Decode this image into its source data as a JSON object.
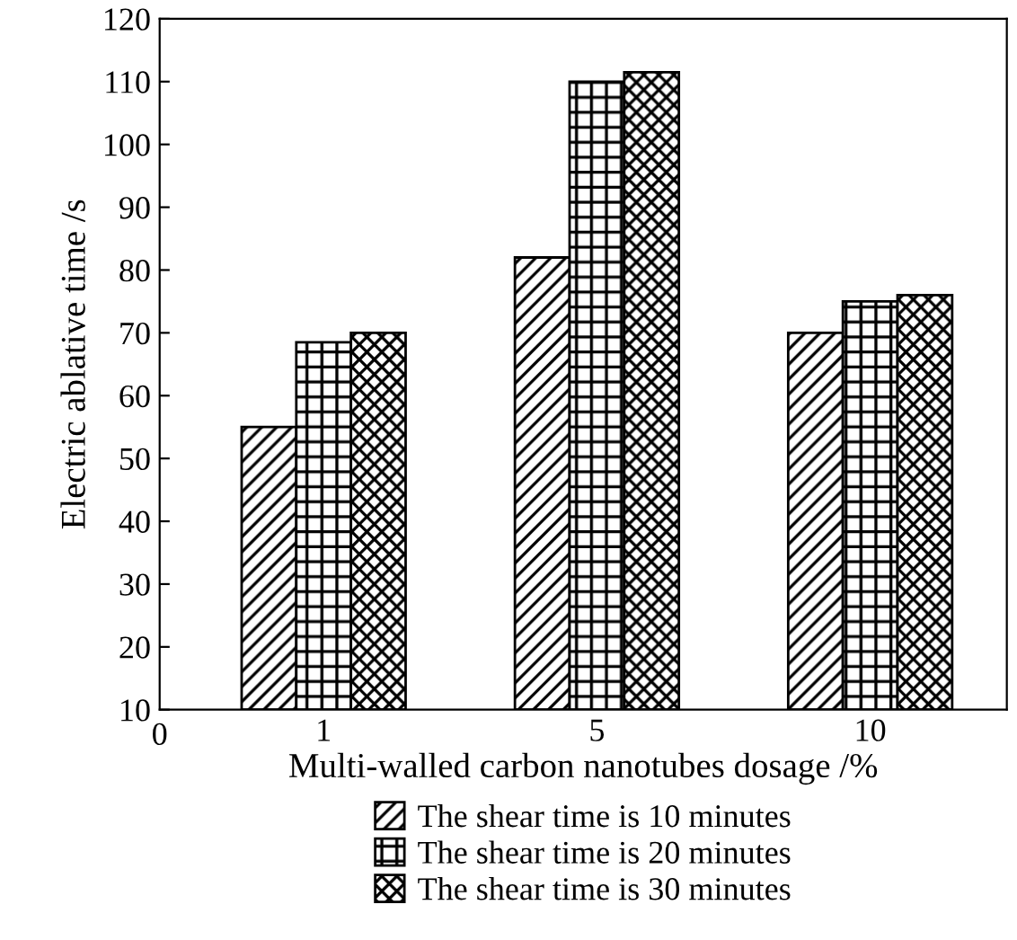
{
  "chart_data": {
    "type": "bar",
    "xlabel": "Multi-walled carbon nanotubes dosage /%",
    "ylabel": "Electric ablative time /s",
    "categories": [
      "1",
      "5",
      "10"
    ],
    "series": [
      {
        "name": "The shear time is 10 minutes",
        "color": "#000000",
        "values": [
          55,
          82,
          70
        ]
      },
      {
        "name": "The shear time is 20 minutes",
        "color": "#000000",
        "values": [
          68.5,
          110,
          75
        ]
      },
      {
        "name": "The shear time is 30 minutes",
        "color": "#000000",
        "values": [
          70,
          111.5,
          76
        ]
      }
    ],
    "ylim": [
      10,
      120
    ],
    "yticks": [
      10,
      20,
      30,
      40,
      50,
      60,
      70,
      80,
      90,
      100,
      110,
      120
    ],
    "annotations": [
      "0"
    ],
    "grid": false,
    "legend": "bottom"
  }
}
